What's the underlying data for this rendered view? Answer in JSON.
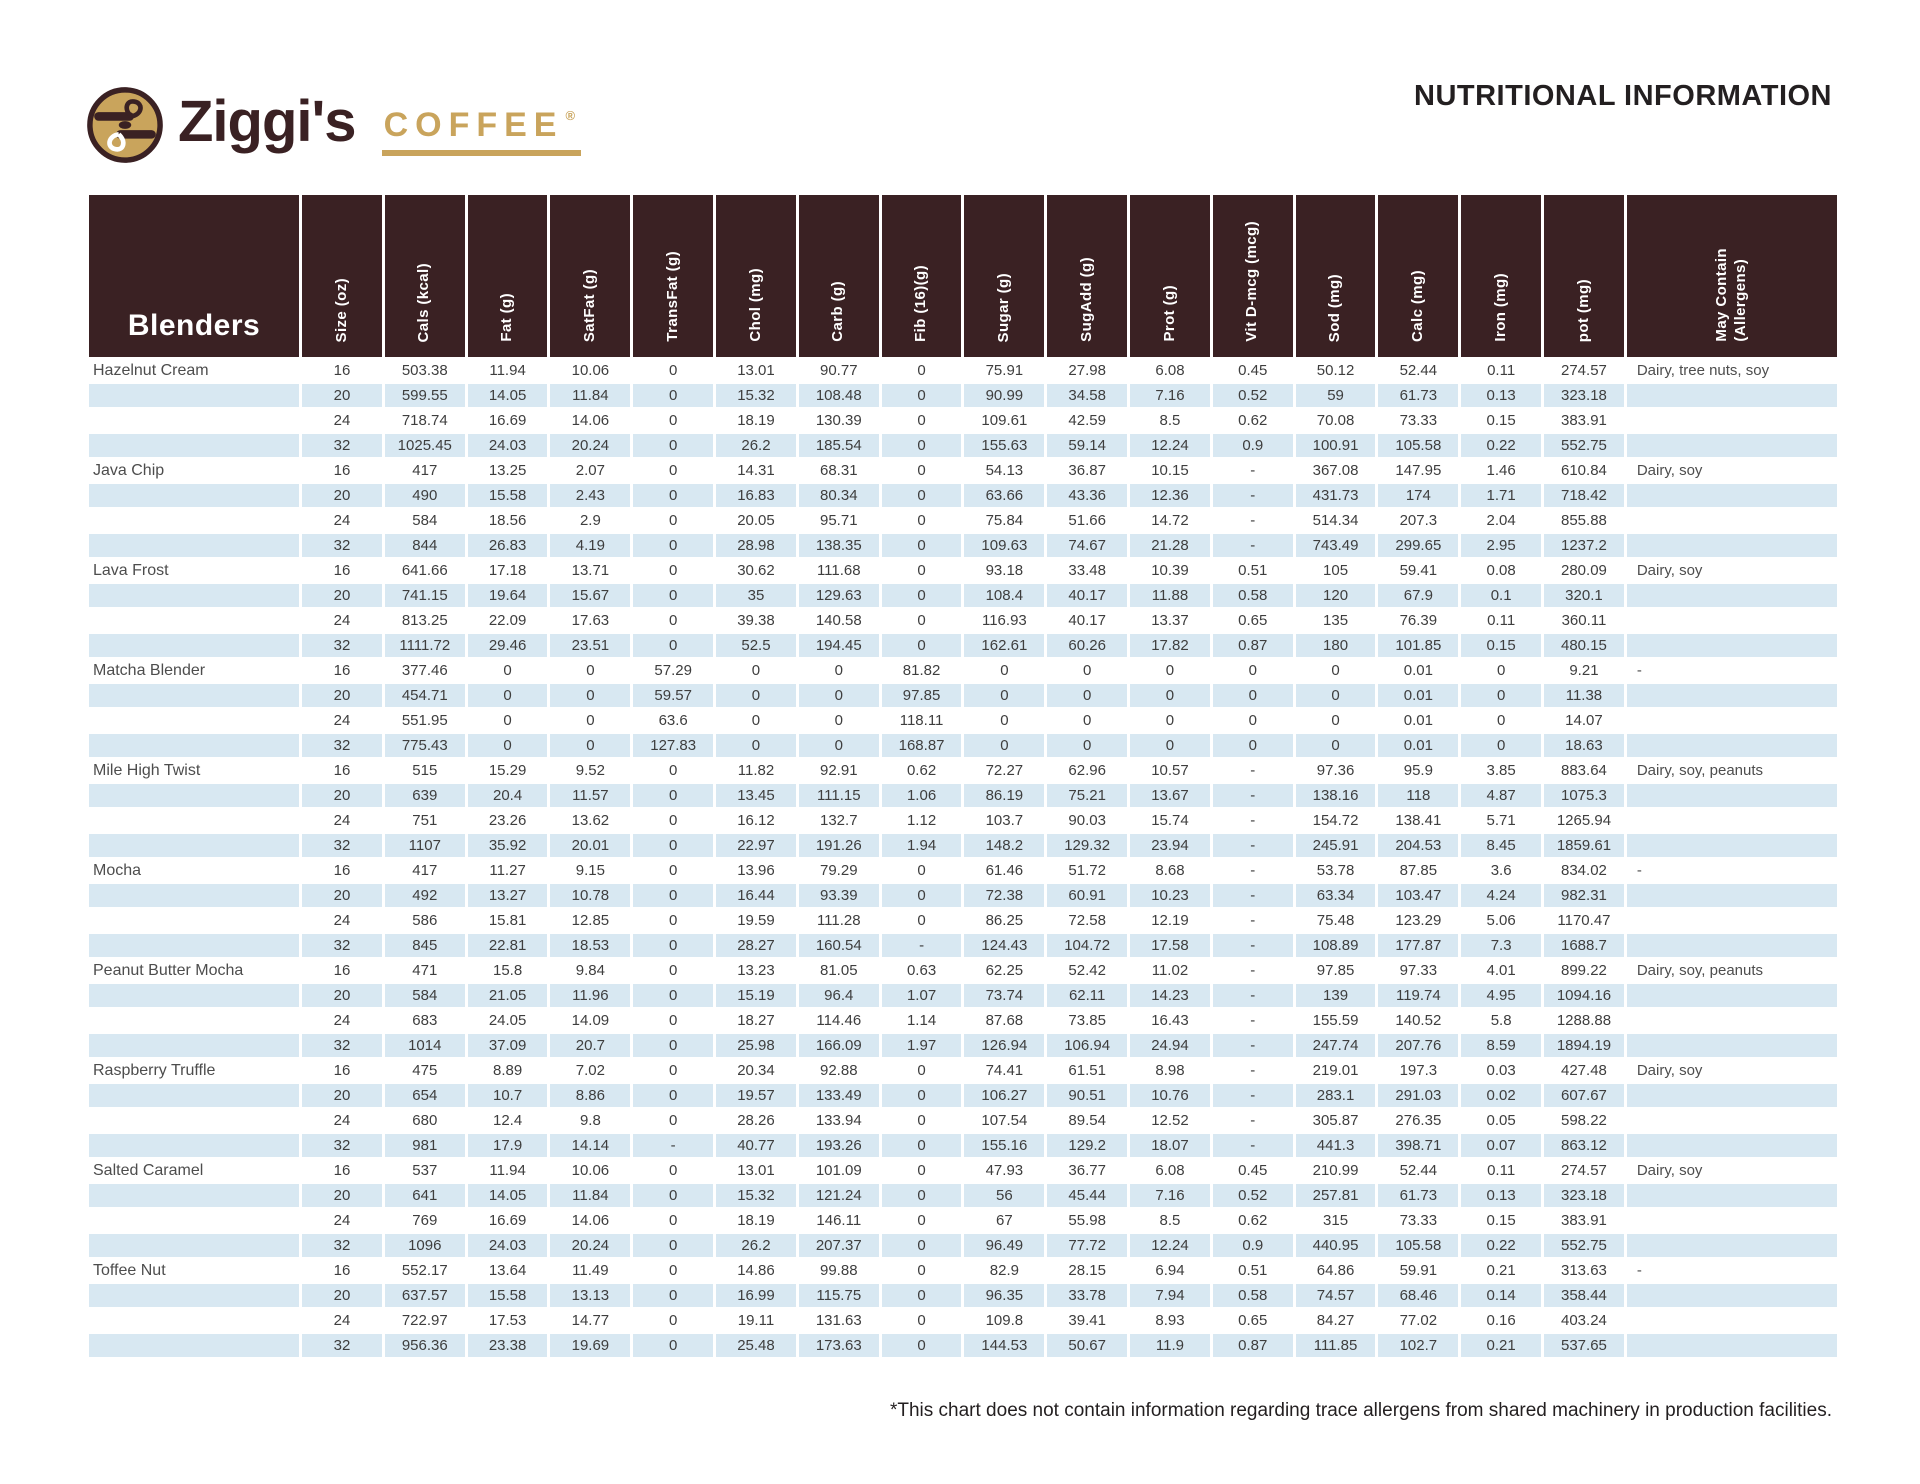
{
  "logo": {
    "name": "Ziggi's",
    "coffee": "COFFEE",
    "reg": "®"
  },
  "page": {
    "title": "NUTRITIONAL INFORMATION",
    "footnote": "*This chart does not contain information regarding trace allergens from shared machinery in production facilities."
  },
  "colors": {
    "header_brown": "#3A2123",
    "row_blue": "#D8E8F2",
    "brand_tan": "#C9A45C"
  },
  "table": {
    "group_label": "Blenders",
    "columns": [
      "Size (oz)",
      "Cals (kcal)",
      "Fat (g)",
      "SatFat (g)",
      "TransFat (g)",
      "Chol (mg)",
      "Carb (g)",
      "Fib (16)(g)",
      "Sugar (g)",
      "SugAdd (g)",
      "Prot (g)",
      "Vit D-mcg (mcg)",
      "Sod (mg)",
      "Calc (mg)",
      "Iron (mg)",
      "pot (mg)",
      "May Contain\n(Allergens)"
    ],
    "products": [
      {
        "name": "Hazelnut Cream",
        "allergens": "Dairy, tree nuts, soy",
        "rows": [
          [
            "16",
            "503.38",
            "11.94",
            "10.06",
            "0",
            "13.01",
            "90.77",
            "0",
            "75.91",
            "27.98",
            "6.08",
            "0.45",
            "50.12",
            "52.44",
            "0.11",
            "274.57"
          ],
          [
            "20",
            "599.55",
            "14.05",
            "11.84",
            "0",
            "15.32",
            "108.48",
            "0",
            "90.99",
            "34.58",
            "7.16",
            "0.52",
            "59",
            "61.73",
            "0.13",
            "323.18"
          ],
          [
            "24",
            "718.74",
            "16.69",
            "14.06",
            "0",
            "18.19",
            "130.39",
            "0",
            "109.61",
            "42.59",
            "8.5",
            "0.62",
            "70.08",
            "73.33",
            "0.15",
            "383.91"
          ],
          [
            "32",
            "1025.45",
            "24.03",
            "20.24",
            "0",
            "26.2",
            "185.54",
            "0",
            "155.63",
            "59.14",
            "12.24",
            "0.9",
            "100.91",
            "105.58",
            "0.22",
            "552.75"
          ]
        ]
      },
      {
        "name": "Java Chip",
        "allergens": "Dairy, soy",
        "rows": [
          [
            "16",
            "417",
            "13.25",
            "2.07",
            "0",
            "14.31",
            "68.31",
            "0",
            "54.13",
            "36.87",
            "10.15",
            "-",
            "367.08",
            "147.95",
            "1.46",
            "610.84"
          ],
          [
            "20",
            "490",
            "15.58",
            "2.43",
            "0",
            "16.83",
            "80.34",
            "0",
            "63.66",
            "43.36",
            "12.36",
            "-",
            "431.73",
            "174",
            "1.71",
            "718.42"
          ],
          [
            "24",
            "584",
            "18.56",
            "2.9",
            "0",
            "20.05",
            "95.71",
            "0",
            "75.84",
            "51.66",
            "14.72",
            "-",
            "514.34",
            "207.3",
            "2.04",
            "855.88"
          ],
          [
            "32",
            "844",
            "26.83",
            "4.19",
            "0",
            "28.98",
            "138.35",
            "0",
            "109.63",
            "74.67",
            "21.28",
            "-",
            "743.49",
            "299.65",
            "2.95",
            "1237.2"
          ]
        ]
      },
      {
        "name": "Lava Frost",
        "allergens": "Dairy, soy",
        "rows": [
          [
            "16",
            "641.66",
            "17.18",
            "13.71",
            "0",
            "30.62",
            "111.68",
            "0",
            "93.18",
            "33.48",
            "10.39",
            "0.51",
            "105",
            "59.41",
            "0.08",
            "280.09"
          ],
          [
            "20",
            "741.15",
            "19.64",
            "15.67",
            "0",
            "35",
            "129.63",
            "0",
            "108.4",
            "40.17",
            "11.88",
            "0.58",
            "120",
            "67.9",
            "0.1",
            "320.1"
          ],
          [
            "24",
            "813.25",
            "22.09",
            "17.63",
            "0",
            "39.38",
            "140.58",
            "0",
            "116.93",
            "40.17",
            "13.37",
            "0.65",
            "135",
            "76.39",
            "0.11",
            "360.11"
          ],
          [
            "32",
            "1111.72",
            "29.46",
            "23.51",
            "0",
            "52.5",
            "194.45",
            "0",
            "162.61",
            "60.26",
            "17.82",
            "0.87",
            "180",
            "101.85",
            "0.15",
            "480.15"
          ]
        ]
      },
      {
        "name": "Matcha Blender",
        "allergens": "-",
        "rows": [
          [
            "16",
            "377.46",
            "0",
            "0",
            "57.29",
            "0",
            "0",
            "81.82",
            "0",
            "0",
            "0",
            "0",
            "0",
            "0.01",
            "0",
            "9.21"
          ],
          [
            "20",
            "454.71",
            "0",
            "0",
            "59.57",
            "0",
            "0",
            "97.85",
            "0",
            "0",
            "0",
            "0",
            "0",
            "0.01",
            "0",
            "11.38"
          ],
          [
            "24",
            "551.95",
            "0",
            "0",
            "63.6",
            "0",
            "0",
            "118.11",
            "0",
            "0",
            "0",
            "0",
            "0",
            "0.01",
            "0",
            "14.07"
          ],
          [
            "32",
            "775.43",
            "0",
            "0",
            "127.83",
            "0",
            "0",
            "168.87",
            "0",
            "0",
            "0",
            "0",
            "0",
            "0.01",
            "0",
            "18.63"
          ]
        ]
      },
      {
        "name": "Mile High Twist",
        "allergens": "Dairy, soy, peanuts",
        "rows": [
          [
            "16",
            "515",
            "15.29",
            "9.52",
            "0",
            "11.82",
            "92.91",
            "0.62",
            "72.27",
            "62.96",
            "10.57",
            "-",
            "97.36",
            "95.9",
            "3.85",
            "883.64"
          ],
          [
            "20",
            "639",
            "20.4",
            "11.57",
            "0",
            "13.45",
            "111.15",
            "1.06",
            "86.19",
            "75.21",
            "13.67",
            "-",
            "138.16",
            "118",
            "4.87",
            "1075.3"
          ],
          [
            "24",
            "751",
            "23.26",
            "13.62",
            "0",
            "16.12",
            "132.7",
            "1.12",
            "103.7",
            "90.03",
            "15.74",
            "-",
            "154.72",
            "138.41",
            "5.71",
            "1265.94"
          ],
          [
            "32",
            "1107",
            "35.92",
            "20.01",
            "0",
            "22.97",
            "191.26",
            "1.94",
            "148.2",
            "129.32",
            "23.94",
            "-",
            "245.91",
            "204.53",
            "8.45",
            "1859.61"
          ]
        ]
      },
      {
        "name": "Mocha",
        "allergens": "-",
        "rows": [
          [
            "16",
            "417",
            "11.27",
            "9.15",
            "0",
            "13.96",
            "79.29",
            "0",
            "61.46",
            "51.72",
            "8.68",
            "-",
            "53.78",
            "87.85",
            "3.6",
            "834.02"
          ],
          [
            "20",
            "492",
            "13.27",
            "10.78",
            "0",
            "16.44",
            "93.39",
            "0",
            "72.38",
            "60.91",
            "10.23",
            "-",
            "63.34",
            "103.47",
            "4.24",
            "982.31"
          ],
          [
            "24",
            "586",
            "15.81",
            "12.85",
            "0",
            "19.59",
            "111.28",
            "0",
            "86.25",
            "72.58",
            "12.19",
            "-",
            "75.48",
            "123.29",
            "5.06",
            "1170.47"
          ],
          [
            "32",
            "845",
            "22.81",
            "18.53",
            "0",
            "28.27",
            "160.54",
            "-",
            "124.43",
            "104.72",
            "17.58",
            "-",
            "108.89",
            "177.87",
            "7.3",
            "1688.7"
          ]
        ]
      },
      {
        "name": "Peanut Butter Mocha",
        "allergens": "Dairy, soy, peanuts",
        "rows": [
          [
            "16",
            "471",
            "15.8",
            "9.84",
            "0",
            "13.23",
            "81.05",
            "0.63",
            "62.25",
            "52.42",
            "11.02",
            "-",
            "97.85",
            "97.33",
            "4.01",
            "899.22"
          ],
          [
            "20",
            "584",
            "21.05",
            "11.96",
            "0",
            "15.19",
            "96.4",
            "1.07",
            "73.74",
            "62.11",
            "14.23",
            "-",
            "139",
            "119.74",
            "4.95",
            "1094.16"
          ],
          [
            "24",
            "683",
            "24.05",
            "14.09",
            "0",
            "18.27",
            "114.46",
            "1.14",
            "87.68",
            "73.85",
            "16.43",
            "-",
            "155.59",
            "140.52",
            "5.8",
            "1288.88"
          ],
          [
            "32",
            "1014",
            "37.09",
            "20.7",
            "0",
            "25.98",
            "166.09",
            "1.97",
            "126.94",
            "106.94",
            "24.94",
            "-",
            "247.74",
            "207.76",
            "8.59",
            "1894.19"
          ]
        ]
      },
      {
        "name": "Raspberry Truffle",
        "allergens": "Dairy, soy",
        "rows": [
          [
            "16",
            "475",
            "8.89",
            "7.02",
            "0",
            "20.34",
            "92.88",
            "0",
            "74.41",
            "61.51",
            "8.98",
            "-",
            "219.01",
            "197.3",
            "0.03",
            "427.48"
          ],
          [
            "20",
            "654",
            "10.7",
            "8.86",
            "0",
            "19.57",
            "133.49",
            "0",
            "106.27",
            "90.51",
            "10.76",
            "-",
            "283.1",
            "291.03",
            "0.02",
            "607.67"
          ],
          [
            "24",
            "680",
            "12.4",
            "9.8",
            "0",
            "28.26",
            "133.94",
            "0",
            "107.54",
            "89.54",
            "12.52",
            "-",
            "305.87",
            "276.35",
            "0.05",
            "598.22"
          ],
          [
            "32",
            "981",
            "17.9",
            "14.14",
            "-",
            "40.77",
            "193.26",
            "0",
            "155.16",
            "129.2",
            "18.07",
            "-",
            "441.3",
            "398.71",
            "0.07",
            "863.12"
          ]
        ]
      },
      {
        "name": "Salted Caramel",
        "allergens": "Dairy, soy",
        "rows": [
          [
            "16",
            "537",
            "11.94",
            "10.06",
            "0",
            "13.01",
            "101.09",
            "0",
            "47.93",
            "36.77",
            "6.08",
            "0.45",
            "210.99",
            "52.44",
            "0.11",
            "274.57"
          ],
          [
            "20",
            "641",
            "14.05",
            "11.84",
            "0",
            "15.32",
            "121.24",
            "0",
            "56",
            "45.44",
            "7.16",
            "0.52",
            "257.81",
            "61.73",
            "0.13",
            "323.18"
          ],
          [
            "24",
            "769",
            "16.69",
            "14.06",
            "0",
            "18.19",
            "146.11",
            "0",
            "67",
            "55.98",
            "8.5",
            "0.62",
            "315",
            "73.33",
            "0.15",
            "383.91"
          ],
          [
            "32",
            "1096",
            "24.03",
            "20.24",
            "0",
            "26.2",
            "207.37",
            "0",
            "96.49",
            "77.72",
            "12.24",
            "0.9",
            "440.95",
            "105.58",
            "0.22",
            "552.75"
          ]
        ]
      },
      {
        "name": "Toffee Nut",
        "allergens": "-",
        "rows": [
          [
            "16",
            "552.17",
            "13.64",
            "11.49",
            "0",
            "14.86",
            "99.88",
            "0",
            "82.9",
            "28.15",
            "6.94",
            "0.51",
            "64.86",
            "59.91",
            "0.21",
            "313.63"
          ],
          [
            "20",
            "637.57",
            "15.58",
            "13.13",
            "0",
            "16.99",
            "115.75",
            "0",
            "96.35",
            "33.78",
            "7.94",
            "0.58",
            "74.57",
            "68.46",
            "0.14",
            "358.44"
          ],
          [
            "24",
            "722.97",
            "17.53",
            "14.77",
            "0",
            "19.11",
            "131.63",
            "0",
            "109.8",
            "39.41",
            "8.93",
            "0.65",
            "84.27",
            "77.02",
            "0.16",
            "403.24"
          ],
          [
            "32",
            "956.36",
            "23.38",
            "19.69",
            "0",
            "25.48",
            "173.63",
            "0",
            "144.53",
            "50.67",
            "11.9",
            "0.87",
            "111.85",
            "102.7",
            "0.21",
            "537.65"
          ]
        ]
      }
    ]
  }
}
